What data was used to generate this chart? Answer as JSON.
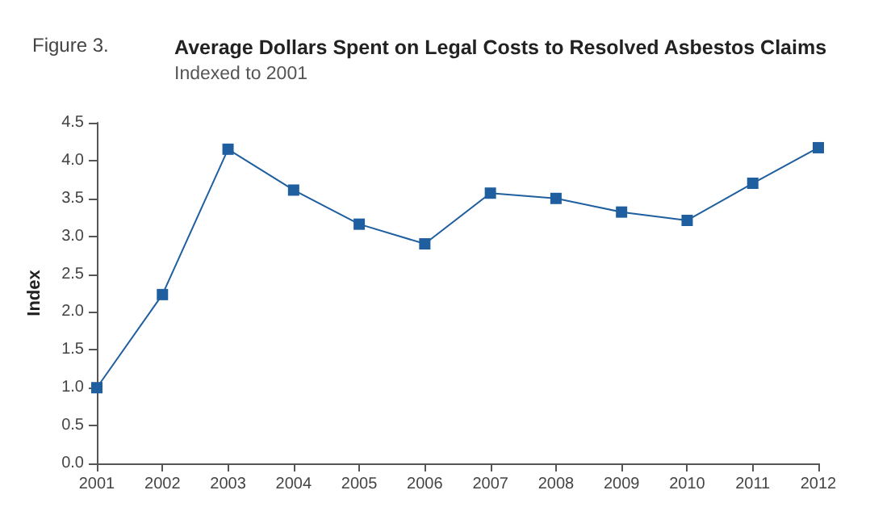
{
  "chart_data": {
    "type": "line",
    "title": "Average Dollars Spent on Legal Costs to Resolved Asbestos Claims",
    "subtitle": "Indexed to 2001",
    "annotations": [
      "Figure 3."
    ],
    "ylabel": "Index",
    "categories": [
      "2001",
      "2002",
      "2003",
      "2004",
      "2005",
      "2006",
      "2007",
      "2008",
      "2009",
      "2010",
      "2011",
      "2012"
    ],
    "series": [
      {
        "color": "#1f5f9f",
        "values": [
          1.0,
          2.23,
          4.15,
          3.61,
          3.16,
          2.9,
          3.57,
          3.5,
          3.32,
          3.21,
          3.7,
          4.17
        ]
      }
    ],
    "ylim": [
      0,
      4.5
    ],
    "yticks": [
      {
        "value": 0,
        "label": "0.0"
      },
      {
        "value": 0.5,
        "label": "0.5"
      },
      {
        "value": 1,
        "label": "1.0"
      },
      {
        "value": 1.5,
        "label": "1.5"
      },
      {
        "value": 2,
        "label": "2.0"
      },
      {
        "value": 2.5,
        "label": "2.5"
      },
      {
        "value": 3,
        "label": "3.0"
      },
      {
        "value": 3.5,
        "label": "3.5"
      },
      {
        "value": 4,
        "label": "4.0"
      },
      {
        "value": 4.5,
        "label": "4.5"
      }
    ],
    "marker": "square",
    "line_style": "solid"
  }
}
